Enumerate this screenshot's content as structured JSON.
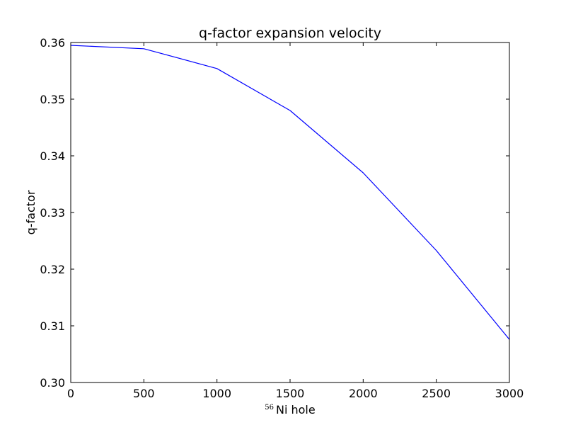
{
  "chart_data": {
    "type": "line",
    "title": "q-factor expansion velocity",
    "xlabel": "Ni hole",
    "xlabel_superscript": "56",
    "ylabel": "q-factor",
    "xlim": [
      0,
      3000
    ],
    "ylim": [
      0.3,
      0.36
    ],
    "xticks": [
      0,
      500,
      1000,
      1500,
      2000,
      2500,
      3000
    ],
    "xtick_labels": [
      "0",
      "500",
      "1000",
      "1500",
      "2000",
      "2500",
      "3000"
    ],
    "yticks": [
      0.3,
      0.31,
      0.32,
      0.33,
      0.34,
      0.35,
      0.36
    ],
    "ytick_labels": [
      "0.30",
      "0.31",
      "0.32",
      "0.33",
      "0.34",
      "0.35",
      "0.36"
    ],
    "grid": false,
    "series": [
      {
        "color": "#0000ff",
        "x": [
          0,
          500,
          1000,
          1500,
          2000,
          2500,
          3000
        ],
        "y": [
          0.3595,
          0.3589,
          0.3554,
          0.348,
          0.337,
          0.3233,
          0.3076
        ]
      }
    ]
  }
}
